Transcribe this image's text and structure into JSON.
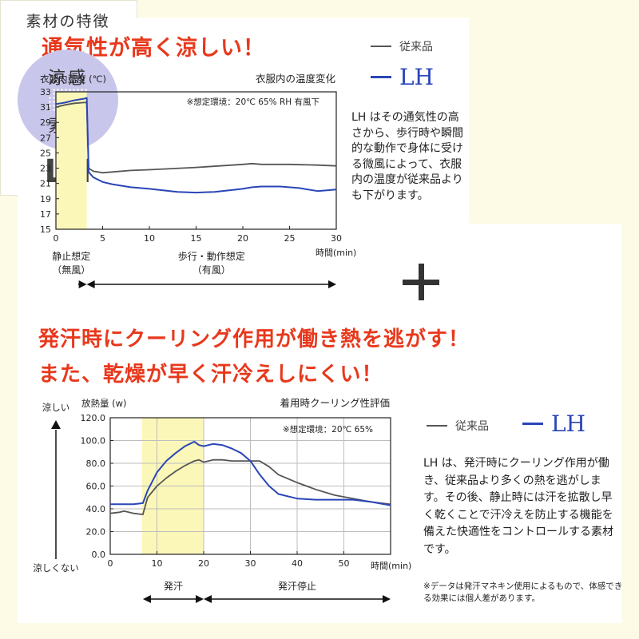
{
  "headline1": "通気性が高く涼しい！",
  "headline2_line1": "発汗時にクーリング作用が働き熱を逃がす！",
  "headline2_line2": "また、乾燥が早く汗冷えしにくい！",
  "legend": {
    "conventional": "従来品",
    "lh": "LH"
  },
  "feature_box": {
    "title": "素材の特徴",
    "circle_line1": "涼感",
    "circle_line2": "素材",
    "brand": "LH"
  },
  "chart1_description": "LH はその通気性の高さから、歩行時や瞬間的な動作で身体に受ける微風によって、衣服内の温度が従来品よりも下がります。",
  "chart2_description": "LH は、発汗時にクーリング作用が働き、従来品より多くの熱を逃がします。その後、静止時には汗を拡散し早く乾くことで汗冷えを防止する機能を備えた快適性をコントロールする素材です。",
  "footnote": "※データは発汗マネキン使用によるもので、体感できる効果には個人差があります。",
  "colors": {
    "headline": "#e8381c",
    "lh": "#2a45b8",
    "conventional": "#555555",
    "highlight": "#fbf7b8",
    "background": "#fdfbe6",
    "circle": "#c9c6eb"
  },
  "chart_data": [
    {
      "type": "line",
      "title": "衣服内の温度変化",
      "ylabel": "衣服内温度 (℃)",
      "xlabel": "時間(min)",
      "condition_note": "※想定環境：20℃ 65% RH 有風下",
      "xlim": [
        0,
        30
      ],
      "ylim": [
        15,
        33
      ],
      "x_ticks": [
        0,
        5,
        10,
        15,
        20,
        25,
        30
      ],
      "y_ticks": [
        15,
        17,
        19,
        21,
        23,
        25,
        27,
        29,
        31,
        33
      ],
      "x_tick_labels": [
        "0",
        "5",
        "10",
        "15",
        "20",
        "25",
        "30"
      ],
      "y_tick_labels": [
        "15",
        "17",
        "19",
        "21",
        "23",
        "25",
        "27",
        "29",
        "31",
        "33"
      ],
      "highlight": {
        "from": 0,
        "to": 3.3
      },
      "phases": [
        {
          "label": "静止想定",
          "sublabel": "（無風）",
          "from": 0,
          "to": 3.3
        },
        {
          "label": "歩行・動作想定",
          "sublabel": "（有風）",
          "from": 3.3,
          "to": 30
        }
      ],
      "grid": false,
      "series": [
        {
          "name": "従来品",
          "color": "#555555",
          "x": [
            0,
            1,
            2,
            3,
            3.3,
            3.5,
            4,
            5,
            6,
            8,
            10,
            15,
            20,
            21,
            22,
            25,
            28,
            30
          ],
          "y": [
            31.0,
            31.3,
            31.5,
            31.6,
            31.6,
            23.0,
            22.6,
            22.4,
            22.5,
            22.7,
            22.8,
            23.1,
            23.5,
            23.6,
            23.5,
            23.5,
            23.4,
            23.3
          ]
        },
        {
          "name": "LH",
          "color": "#2a45b8",
          "x": [
            0,
            1,
            2,
            3,
            3.3,
            3.5,
            4,
            5,
            6,
            8,
            10,
            13,
            15,
            17,
            20,
            21,
            22,
            24,
            26,
            28,
            30
          ],
          "y": [
            31.4,
            31.6,
            31.9,
            32.1,
            32.2,
            22.5,
            21.8,
            21.2,
            20.9,
            20.5,
            20.3,
            19.9,
            19.8,
            19.9,
            20.3,
            20.5,
            20.6,
            20.6,
            20.4,
            20.0,
            20.2
          ]
        }
      ]
    },
    {
      "type": "line",
      "title": "着用時クーリング性評価",
      "ylabel": "放熱量 (w)",
      "xlabel": "時間(min)",
      "condition_note": "※想定環境：20℃ 65%",
      "xlim": [
        0,
        60
      ],
      "ylim": [
        0,
        120
      ],
      "x_ticks": [
        0,
        10,
        20,
        30,
        40,
        50
      ],
      "y_ticks": [
        0,
        20,
        40,
        60,
        80,
        100,
        120
      ],
      "x_tick_labels": [
        "0",
        "10",
        "20",
        "30",
        "40",
        "50"
      ],
      "y_tick_labels": [
        "0.0",
        "20.0",
        "40.0",
        "60.0",
        "80.0",
        "100.0",
        "120.0"
      ],
      "axis_top_label": "涼しい",
      "axis_bottom_label": "涼しくない",
      "highlight": {
        "from": 6.8,
        "to": 20
      },
      "phases": [
        {
          "label": "発汗",
          "from": 7,
          "to": 20
        },
        {
          "label": "発汗停止",
          "from": 20,
          "to": 60
        }
      ],
      "grid": true,
      "series": [
        {
          "name": "従来品",
          "color": "#555555",
          "x": [
            0,
            2,
            3,
            5,
            7,
            8,
            10,
            12,
            14,
            16,
            18,
            19,
            20,
            22,
            24,
            26,
            28,
            30,
            32,
            34,
            36,
            40,
            44,
            48,
            52,
            56,
            60
          ],
          "y": [
            36,
            37,
            38,
            36,
            35,
            50,
            60,
            67,
            73,
            78,
            82,
            83,
            81,
            83,
            83,
            82,
            82,
            82,
            82,
            77,
            70,
            63,
            57,
            52,
            49,
            46,
            44
          ]
        },
        {
          "name": "LH",
          "color": "#2a45b8",
          "x": [
            0,
            3,
            5,
            7,
            8,
            10,
            12,
            14,
            16,
            17,
            18,
            19,
            20,
            22,
            24,
            26,
            28,
            30,
            32,
            34,
            36,
            40,
            44,
            48,
            52,
            56,
            60
          ],
          "y": [
            44,
            44,
            44,
            45,
            56,
            72,
            82,
            89,
            95,
            97,
            99,
            96,
            95,
            97,
            96,
            93,
            89,
            82,
            70,
            60,
            53,
            49,
            48,
            48,
            48,
            46,
            43
          ]
        }
      ]
    }
  ]
}
